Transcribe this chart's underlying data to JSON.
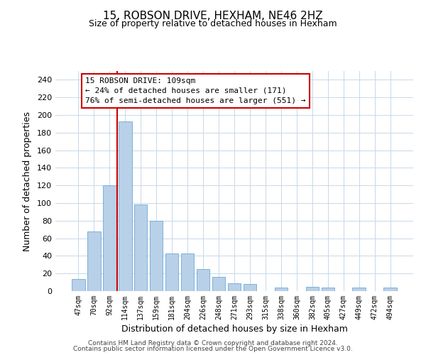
{
  "title": "15, ROBSON DRIVE, HEXHAM, NE46 2HZ",
  "subtitle": "Size of property relative to detached houses in Hexham",
  "xlabel": "Distribution of detached houses by size in Hexham",
  "ylabel": "Number of detached properties",
  "bar_labels": [
    "47sqm",
    "70sqm",
    "92sqm",
    "114sqm",
    "137sqm",
    "159sqm",
    "181sqm",
    "204sqm",
    "226sqm",
    "248sqm",
    "271sqm",
    "293sqm",
    "315sqm",
    "338sqm",
    "360sqm",
    "382sqm",
    "405sqm",
    "427sqm",
    "449sqm",
    "472sqm",
    "494sqm"
  ],
  "bar_values": [
    14,
    68,
    120,
    193,
    98,
    80,
    43,
    43,
    25,
    16,
    9,
    8,
    0,
    4,
    0,
    5,
    4,
    0,
    4,
    0,
    4
  ],
  "bar_color": "#b8d0e8",
  "bar_edge_color": "#6fa8d4",
  "vline_color": "#cc0000",
  "ylim": [
    0,
    250
  ],
  "yticks": [
    0,
    20,
    40,
    60,
    80,
    100,
    120,
    140,
    160,
    180,
    200,
    220,
    240
  ],
  "annotation_title": "15 ROBSON DRIVE: 109sqm",
  "annotation_line1": "← 24% of detached houses are smaller (171)",
  "annotation_line2": "76% of semi-detached houses are larger (551) →",
  "annotation_box_color": "#ffffff",
  "annotation_box_edge": "#cc0000",
  "footer1": "Contains HM Land Registry data © Crown copyright and database right 2024.",
  "footer2": "Contains public sector information licensed under the Open Government Licence v3.0.",
  "background_color": "#ffffff",
  "grid_color": "#c8d8e8",
  "vline_bar_index": 3
}
